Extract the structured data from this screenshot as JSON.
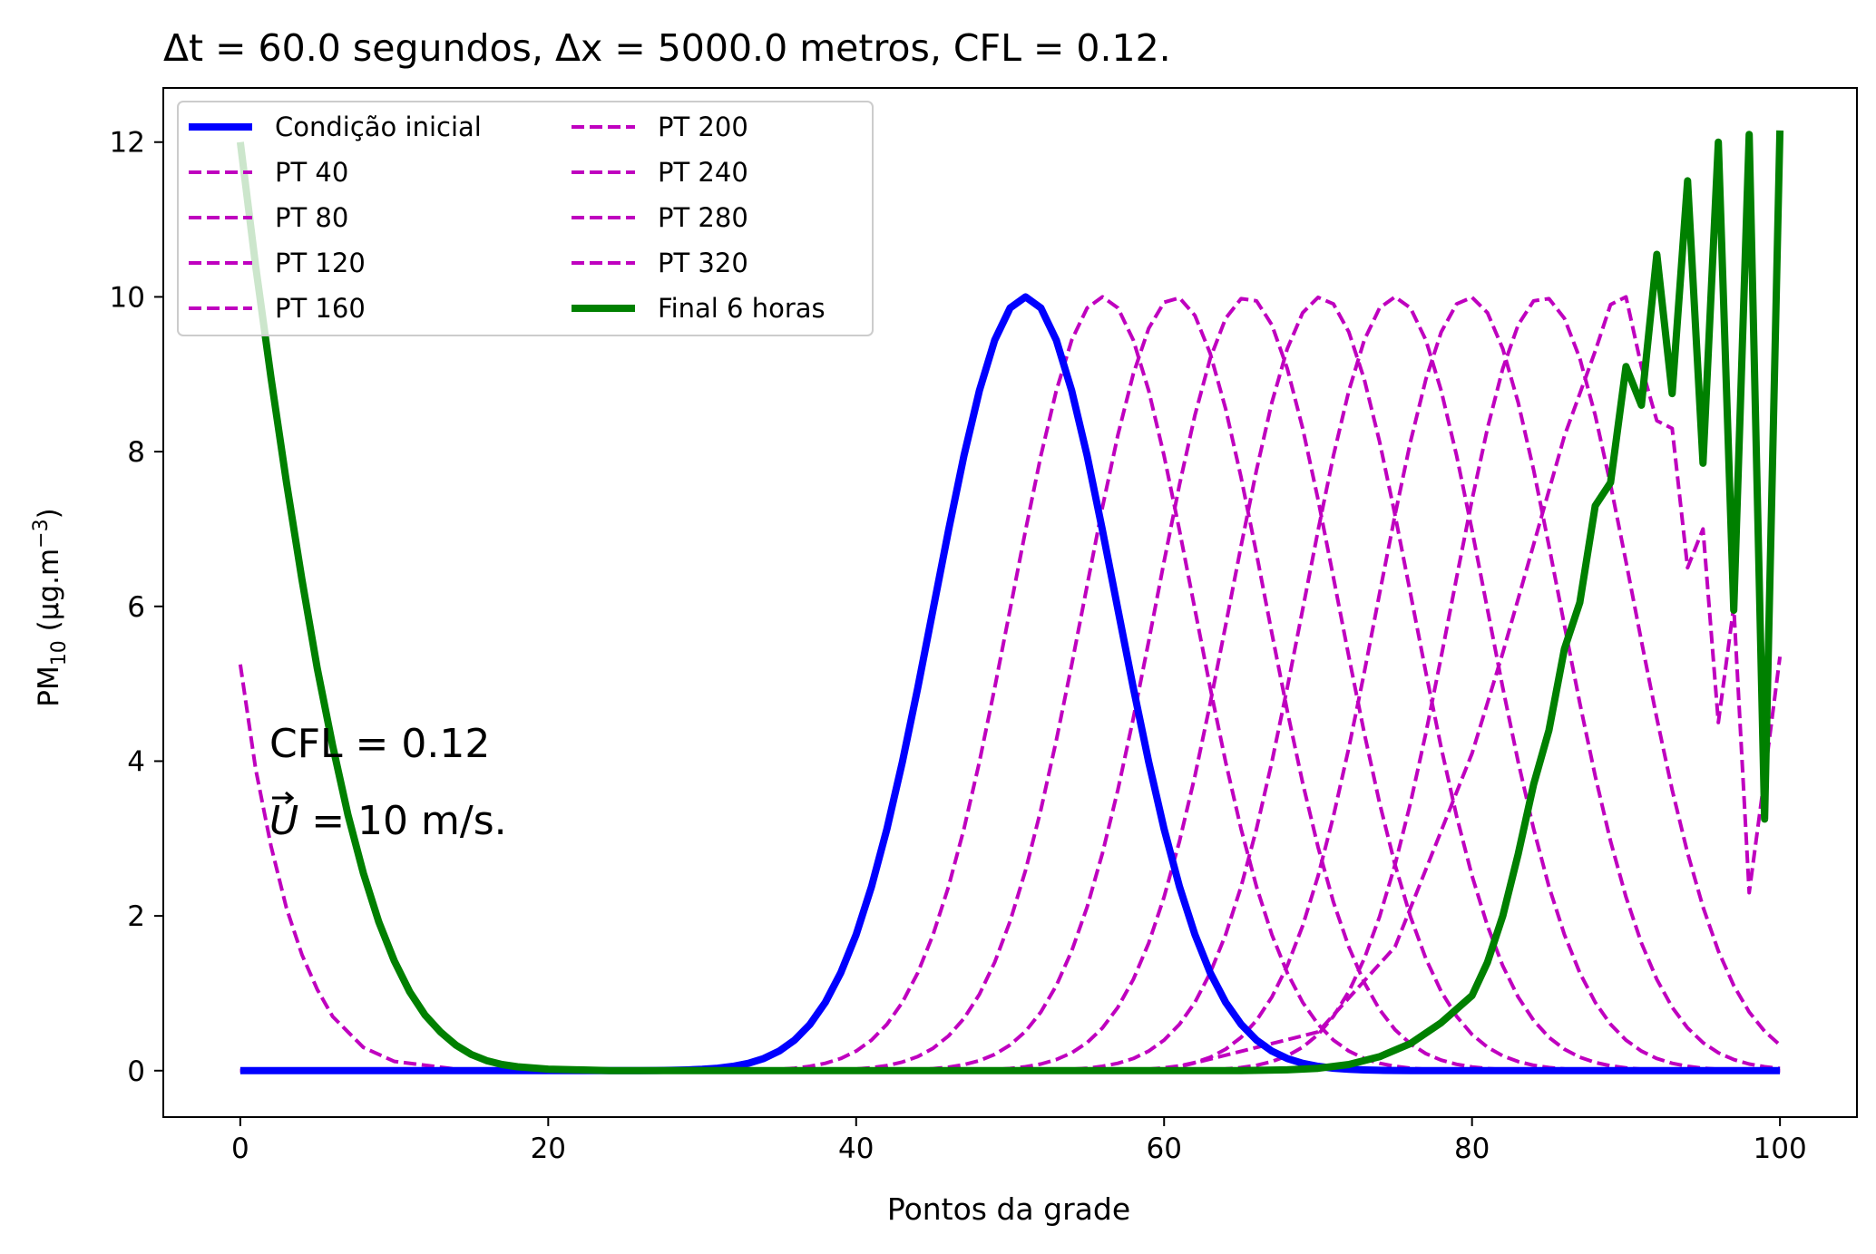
{
  "chart_data": {
    "type": "line",
    "title": "Δt = 60.0 segundos, Δx = 5000.0 metros, CFL = 0.12.",
    "xlabel": "Pontos da grade",
    "ylabel": "PM10 (μg.m−3)",
    "ylabel_parts": {
      "base": "PM",
      "sub": "10",
      "unit": " (μg.m",
      "sup": "−3",
      "close": ")"
    },
    "xlim": [
      -5,
      105
    ],
    "ylim": [
      -0.6,
      12.7
    ],
    "xticks": [
      0,
      20,
      40,
      60,
      80,
      100
    ],
    "yticks": [
      0,
      2,
      4,
      6,
      8,
      10,
      12
    ],
    "grid": false,
    "legend": {
      "position": "top-left",
      "columns": 2
    },
    "annotations": {
      "line1": "CFL = 0.12",
      "line2": "U⃗ = 10 m/s.",
      "line2_vector": "U",
      "line2_rest": " = 10 m/s."
    },
    "series": [
      {
        "name": "Condição inicial",
        "style": "solid",
        "color": "#0000ff",
        "kind": "gaussian",
        "amplitude": 10.0,
        "center": 51.0,
        "sigma": 5.9
      },
      {
        "name": "PT 40",
        "style": "dashed",
        "color": "#bf00bf",
        "kind": "gaussian",
        "amplitude": 10.0,
        "center": 56.0,
        "sigma": 5.9
      },
      {
        "name": "PT 80",
        "style": "dashed",
        "color": "#bf00bf",
        "kind": "gaussian",
        "amplitude": 10.0,
        "center": 60.7,
        "sigma": 5.9
      },
      {
        "name": "PT 120",
        "style": "dashed",
        "color": "#bf00bf",
        "kind": "gaussian",
        "amplitude": 10.0,
        "center": 65.4,
        "sigma": 5.9
      },
      {
        "name": "PT 160",
        "style": "dashed",
        "color": "#bf00bf",
        "kind": "gaussian",
        "amplitude": 10.0,
        "center": 70.2,
        "sigma": 5.9
      },
      {
        "name": "PT 200",
        "style": "dashed",
        "color": "#bf00bf",
        "kind": "gaussian",
        "amplitude": 10.0,
        "center": 75.0,
        "sigma": 5.9
      },
      {
        "name": "PT 240",
        "style": "dashed",
        "color": "#bf00bf",
        "kind": "gaussian",
        "amplitude": 10.0,
        "center": 79.8,
        "sigma": 5.9
      },
      {
        "name": "PT 280",
        "style": "dashed",
        "color": "#bf00bf",
        "kind": "gaussian",
        "amplitude": 10.0,
        "center": 84.6,
        "sigma": 5.9
      },
      {
        "name": "PT 320",
        "style": "dashed",
        "color": "#bf00bf",
        "kind": "points",
        "x": [
          0,
          1,
          2,
          3,
          4,
          5,
          6,
          8,
          10,
          14,
          20,
          60,
          70,
          75,
          80,
          82,
          84,
          86,
          88,
          89,
          90,
          91,
          92,
          93,
          94,
          95,
          96,
          97,
          98,
          99,
          100
        ],
        "y": [
          5.25,
          3.9,
          2.9,
          2.1,
          1.5,
          1.05,
          0.7,
          0.3,
          0.12,
          0.02,
          0,
          0,
          0.5,
          1.6,
          4.1,
          5.4,
          6.8,
          8.2,
          9.3,
          9.9,
          10.0,
          9.1,
          8.4,
          8.3,
          6.5,
          7.0,
          4.5,
          6.0,
          2.3,
          3.8,
          5.35
        ]
      },
      {
        "name": "Final 6 horas",
        "style": "solid",
        "color": "#008000",
        "kind": "points",
        "x": [
          0,
          1,
          2,
          3,
          4,
          5,
          6,
          7,
          8,
          9,
          10,
          11,
          12,
          13,
          14,
          15,
          16,
          17,
          18,
          20,
          22,
          24,
          26,
          28,
          30,
          35,
          40,
          45,
          50,
          55,
          60,
          65,
          68,
          70,
          72,
          74,
          76,
          78,
          80,
          81,
          82,
          83,
          84,
          85,
          86,
          87,
          88,
          89,
          90,
          91,
          92,
          93,
          94,
          95,
          96,
          97,
          98,
          99,
          100
        ],
        "y": [
          12.0,
          10.4,
          8.95,
          7.6,
          6.35,
          5.2,
          4.2,
          3.3,
          2.55,
          1.92,
          1.42,
          1.02,
          0.72,
          0.5,
          0.33,
          0.21,
          0.13,
          0.08,
          0.05,
          0.02,
          0.01,
          0,
          0,
          0,
          0,
          0,
          0,
          0,
          0,
          0,
          0,
          0,
          0.01,
          0.03,
          0.08,
          0.18,
          0.35,
          0.62,
          0.97,
          1.4,
          2.0,
          2.8,
          3.7,
          4.4,
          5.45,
          6.05,
          7.3,
          7.6,
          9.1,
          8.6,
          10.55,
          8.75,
          11.5,
          7.85,
          12.0,
          5.95,
          12.1,
          3.25,
          12.15
        ]
      }
    ]
  }
}
